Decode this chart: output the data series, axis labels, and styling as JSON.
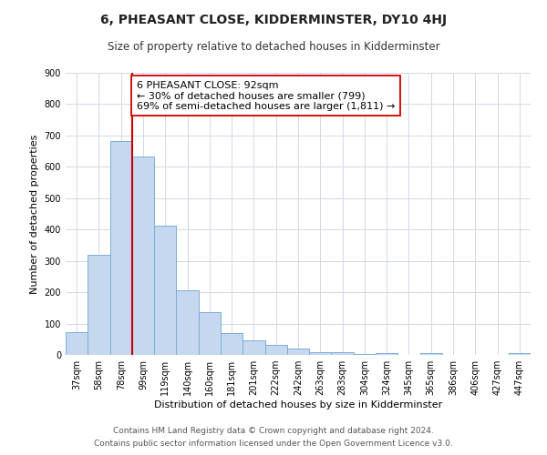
{
  "title": "6, PHEASANT CLOSE, KIDDERMINSTER, DY10 4HJ",
  "subtitle": "Size of property relative to detached houses in Kidderminster",
  "xlabel": "Distribution of detached houses by size in Kidderminster",
  "ylabel": "Number of detached properties",
  "categories": [
    "37sqm",
    "58sqm",
    "78sqm",
    "99sqm",
    "119sqm",
    "140sqm",
    "160sqm",
    "181sqm",
    "201sqm",
    "222sqm",
    "242sqm",
    "263sqm",
    "283sqm",
    "304sqm",
    "324sqm",
    "345sqm",
    "365sqm",
    "386sqm",
    "406sqm",
    "427sqm",
    "447sqm"
  ],
  "values": [
    72,
    318,
    682,
    632,
    413,
    207,
    137,
    70,
    47,
    33,
    20,
    10,
    8,
    2,
    5,
    0,
    5,
    0,
    0,
    0,
    5
  ],
  "bar_color": "#c5d8f0",
  "bar_edge_color": "#7bafd4",
  "bar_width": 1.0,
  "vline_color": "#cc0000",
  "annotation_line1": "6 PHEASANT CLOSE: 92sqm",
  "annotation_line2": "← 30% of detached houses are smaller (799)",
  "annotation_line3": "69% of semi-detached houses are larger (1,811) →",
  "ylim": [
    0,
    900
  ],
  "yticks": [
    0,
    100,
    200,
    300,
    400,
    500,
    600,
    700,
    800,
    900
  ],
  "footnote1": "Contains HM Land Registry data © Crown copyright and database right 2024.",
  "footnote2": "Contains public sector information licensed under the Open Government Licence v3.0.",
  "background_color": "#ffffff",
  "grid_color": "#d0d8e8",
  "title_fontsize": 10,
  "subtitle_fontsize": 8.5,
  "axis_label_fontsize": 8,
  "tick_fontsize": 7,
  "annotation_fontsize": 8,
  "footnote_fontsize": 6.5
}
